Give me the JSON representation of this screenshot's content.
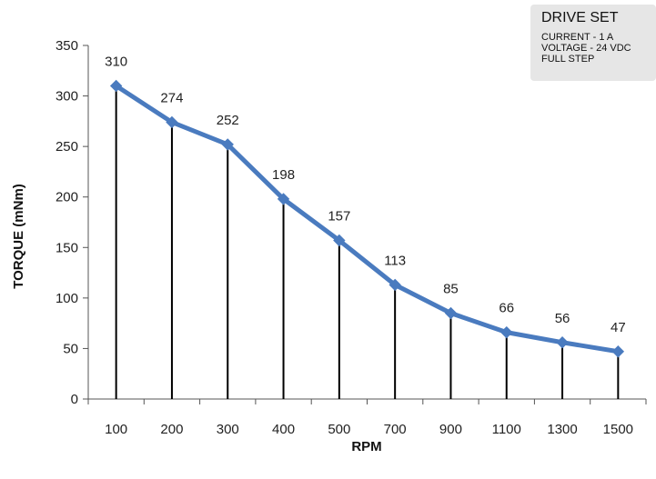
{
  "chart_data": {
    "type": "line",
    "categories": [
      "100",
      "200",
      "300",
      "400",
      "500",
      "700",
      "900",
      "1100",
      "1300",
      "1500"
    ],
    "series": [
      {
        "values": [
          310,
          274,
          252,
          198,
          157,
          113,
          85,
          66,
          56,
          47
        ],
        "color": "#4a7bbf"
      }
    ],
    "data_labels": [
      "310",
      "274",
      "252",
      "198",
      "157",
      "113",
      "85",
      "66",
      "56",
      "47"
    ],
    "xlabel": "RPM",
    "ylabel": "TORQUE (mNm)",
    "ylim": [
      0,
      350
    ],
    "yticks": [
      "0",
      "50",
      "100",
      "150",
      "200",
      "250",
      "300",
      "350"
    ],
    "drop_lines": true,
    "grid": false,
    "legend": {
      "placement": "top-right",
      "title": "DRIVE SET",
      "lines": [
        "CURRENT - 1 A",
        "VOLTAGE - 24 VDC",
        "FULL STEP"
      ],
      "background": "#e6e6e6"
    }
  }
}
